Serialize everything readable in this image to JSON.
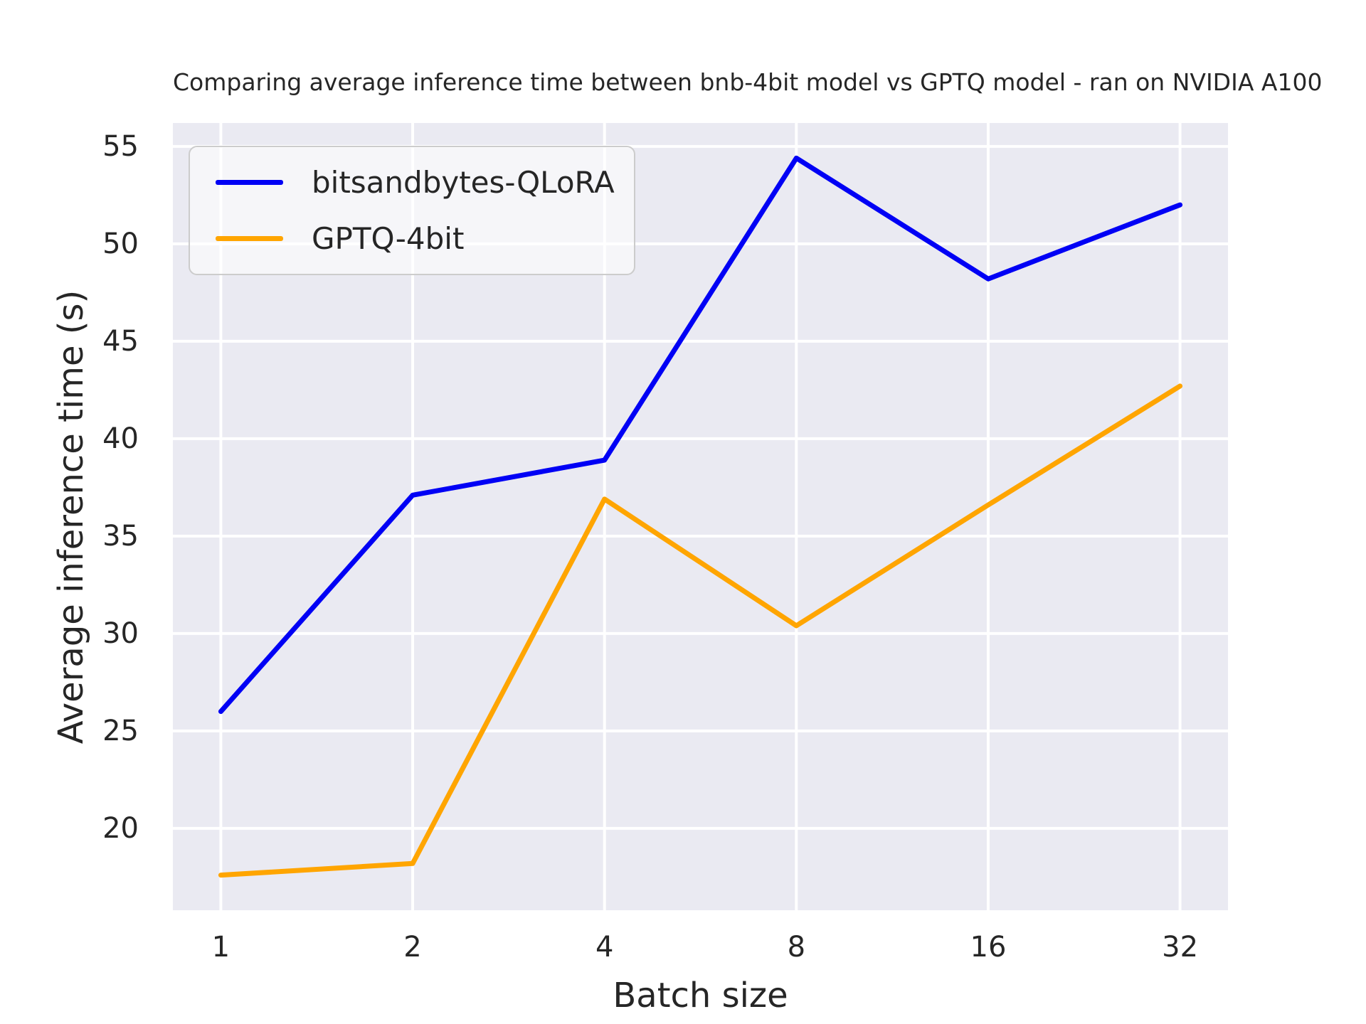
{
  "chart_data": {
    "type": "line",
    "title": "Comparing average inference time between bnb-4bit model vs GPTQ model - ran on NVIDIA A100",
    "xlabel": "Batch size",
    "ylabel": "Average inference time (s)",
    "categories": [
      "1",
      "2",
      "4",
      "8",
      "16",
      "32"
    ],
    "x_scale": "log2-categorical",
    "yticks": [
      20,
      25,
      30,
      35,
      40,
      45,
      50,
      55
    ],
    "ylim": [
      15.8,
      56.2
    ],
    "grid": true,
    "grid_color": "#ffffff",
    "plot_background": "#eaeaf2",
    "figure_background": "#ffffff",
    "text_color": "#262626",
    "legend_position": "upper-left",
    "series": [
      {
        "name": "bitsandbytes-QLoRA",
        "color": "#0000f5",
        "values": [
          26.0,
          37.1,
          38.9,
          54.4,
          48.2,
          52.0
        ]
      },
      {
        "name": "GPTQ-4bit",
        "color": "#ffa500",
        "values": [
          17.6,
          18.2,
          36.9,
          30.4,
          36.6,
          42.7
        ]
      }
    ]
  }
}
